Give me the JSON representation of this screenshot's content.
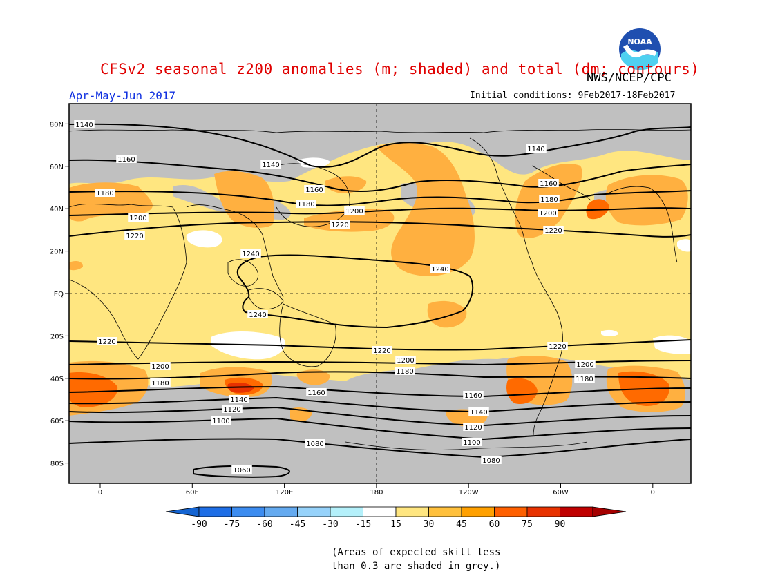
{
  "header": {
    "title": "CFSv2 seasonal z200 anomalies (m; shaded) and total (dm; contours)",
    "agency": "NWS/NCEP/CPC",
    "period": "Apr-May-Jun 2017",
    "initial_conditions": "Initial conditions: 9Feb2017-18Feb2017",
    "logo_text": "NOAA"
  },
  "map": {
    "projection": "cylindrical equidistant",
    "lon_ticks": [
      "0",
      "60E",
      "120E",
      "180",
      "120W",
      "60W",
      "0"
    ],
    "lat_ticks": [
      "80N",
      "60N",
      "40N",
      "20N",
      "EQ",
      "20S",
      "40S",
      "60S",
      "80S"
    ],
    "contour_units": "dm",
    "contours": [
      {
        "label": "1140",
        "lat": 78
      },
      {
        "label": "1160",
        "lat": 62
      },
      {
        "label": "1180",
        "lat": 48
      },
      {
        "label": "1200",
        "lat": 37
      },
      {
        "label": "1220",
        "lat": 28
      },
      {
        "label": "1220",
        "lat": -24
      },
      {
        "label": "1200",
        "lat": -33
      },
      {
        "label": "1180",
        "lat": -41
      },
      {
        "label": "1160",
        "lat": -49
      },
      {
        "label": "1140",
        "lat": -55
      },
      {
        "label": "1120",
        "lat": -59
      },
      {
        "label": "1100",
        "lat": -63
      },
      {
        "label": "1080",
        "lat": -70
      },
      {
        "label": "1060",
        "lat": -85
      }
    ],
    "closed_contour_1240": "1240",
    "colors": {
      "grey": "#c0c0c0",
      "light_yellow": "#ffe680",
      "orange": "#ffb040",
      "dark_orange": "#ff6a00",
      "red": "#e83200",
      "white": "#ffffff"
    }
  },
  "colorbar": {
    "labels": [
      "-90",
      "-75",
      "-60",
      "-45",
      "-30",
      "-15",
      "15",
      "30",
      "45",
      "60",
      "75",
      "90"
    ],
    "colors": [
      "#1464d2",
      "#1e6ee6",
      "#3c8cf0",
      "#64aaf0",
      "#96d2fa",
      "#b4f0fa",
      "#ffffff",
      "#ffe680",
      "#ffc03c",
      "#ffa000",
      "#ff6000",
      "#e83200",
      "#c00000",
      "#a50000"
    ]
  },
  "footnote": {
    "line1": "(Areas of expected skill less",
    "line2": "than 0.3 are shaded in grey.)"
  }
}
